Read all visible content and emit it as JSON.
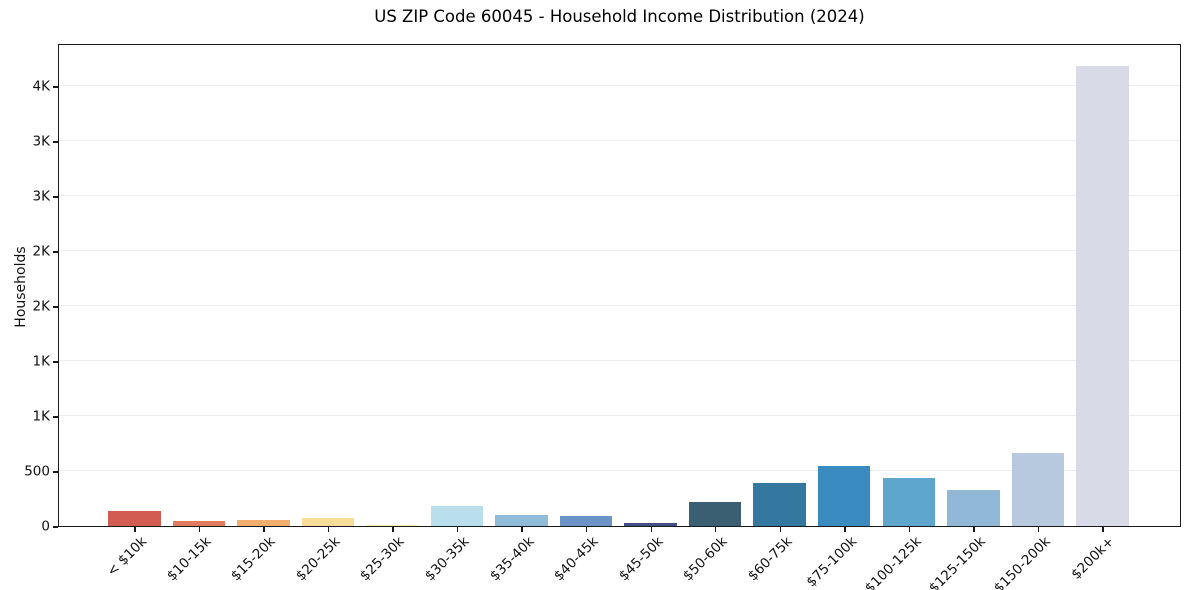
{
  "title": "US ZIP Code 60045 - Household Income Distribution (2024)",
  "y_axis_label": "Households",
  "colors": {
    "background": "#ffffff",
    "grid": "#ececec",
    "spine": "#1a1a1a",
    "text": "#111111"
  },
  "chart_data": {
    "type": "bar",
    "title": "US ZIP Code 60045 - Household Income Distribution (2024)",
    "xlabel": "",
    "ylabel": "Households",
    "ylim": [
      0,
      4390
    ],
    "grid": "horizontal-light",
    "legend": "none",
    "x_tick_rotation": 45,
    "yticks": [
      {
        "value": 0,
        "label": "0"
      },
      {
        "value": 500,
        "label": "500"
      },
      {
        "value": 1000,
        "label": "1K"
      },
      {
        "value": 1500,
        "label": "1K"
      },
      {
        "value": 2000,
        "label": "2K"
      },
      {
        "value": 2500,
        "label": "2K"
      },
      {
        "value": 3000,
        "label": "3K"
      },
      {
        "value": 3500,
        "label": "3K"
      },
      {
        "value": 4000,
        "label": "4K"
      }
    ],
    "categories": [
      "< $10k",
      "$10-15k",
      "$15-20k",
      "$20-25k",
      "$25-30k",
      "$30-35k",
      "$35-40k",
      "$40-45k",
      "$45-50k",
      "$50-60k",
      "$60-75k",
      "$75-100k",
      "$100-125k",
      "$125-150k",
      "$150-200k",
      "$200k+"
    ],
    "values": [
      140,
      42,
      58,
      76,
      5,
      180,
      102,
      88,
      25,
      215,
      390,
      550,
      435,
      330,
      660,
      4180
    ],
    "bar_colors": [
      "#d25b52",
      "#e27b5f",
      "#f2ae6e",
      "#f8dc98",
      "#fdf1b8",
      "#b9dfec",
      "#90bbd9",
      "#6b93c8",
      "#414f85",
      "#3a5f72",
      "#35789f",
      "#398bc0",
      "#5fa6cc",
      "#92b8d8",
      "#b7c9df",
      "#d8dae7"
    ]
  }
}
